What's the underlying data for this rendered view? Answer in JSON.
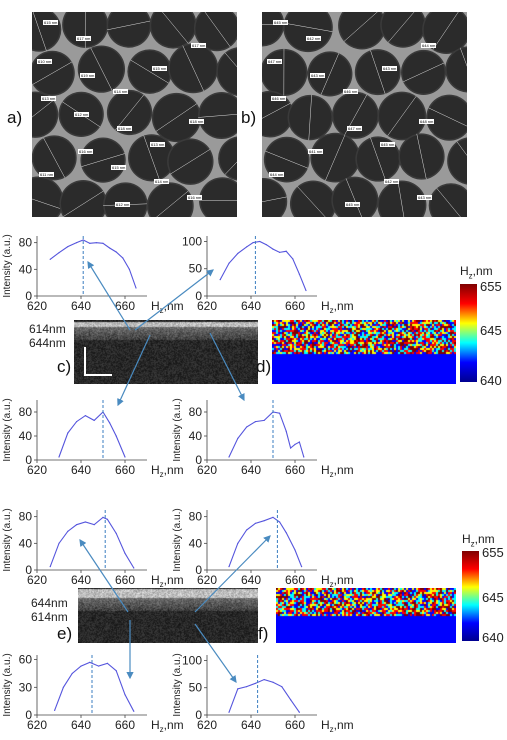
{
  "micrographs": {
    "a": {
      "label": "a)",
      "particle_labels": [
        "615 nm",
        "619 nm",
        "618 nm",
        "614 nm",
        "617 nm",
        "613 nm",
        "616 nm",
        "612 nm",
        "615 nm",
        "618 nm",
        "611 nm",
        "617 nm",
        "614 nm",
        "613 nm",
        "616 nm",
        "610 nm",
        "612 nm",
        "615 nm"
      ]
    },
    "b": {
      "label": "b)",
      "particle_labels": [
        "645 nm",
        "643 nm",
        "647 nm",
        "642 nm",
        "644 nm",
        "646 nm",
        "641 nm",
        "645 nm",
        "643 nm",
        "648 nm",
        "644 nm",
        "642 nm",
        "646 nm",
        "645 nm",
        "643 nm",
        "647 nm"
      ]
    }
  },
  "panel_labels": {
    "c": "c)",
    "d": "d)",
    "e": "e)",
    "f": "f)"
  },
  "layer_labels": {
    "c_top": "614nm",
    "c_bottom": "644nm",
    "e_top": "644nm",
    "e_bottom": "614nm"
  },
  "colorbars": [
    {
      "title": "H",
      "title_sub": "z",
      "title_suffix": ",nm",
      "ticks": [
        "655",
        "645",
        "640"
      ],
      "colors": [
        "#7f0000",
        "#ff0000",
        "#ffff00",
        "#00ffff",
        "#0000ff",
        "#00008f"
      ]
    },
    {
      "title": "H",
      "title_sub": "z",
      "title_suffix": ",nm",
      "ticks": [
        "655",
        "645",
        "640"
      ],
      "colors": [
        "#7f0000",
        "#ff0000",
        "#ffff00",
        "#00ffff",
        "#0000ff",
        "#00008f"
      ]
    }
  ],
  "chart_data": [
    {
      "type": "line",
      "ylabel": "Intensity (a.u.)",
      "xlabel": "H",
      "xlabel_sub": "z",
      "xlabel_suffix": ",nm",
      "xlim": [
        620,
        670
      ],
      "ylim": [
        0,
        90
      ],
      "xticks": [
        "620",
        "640",
        "660"
      ],
      "yticks": [
        "0",
        "40",
        "80"
      ],
      "x": [
        626,
        630,
        634,
        638,
        641,
        644,
        647,
        650,
        653,
        656,
        659,
        662,
        665
      ],
      "series": [
        {
          "values": [
            55,
            65,
            74,
            80,
            84,
            79,
            80,
            79,
            72,
            66,
            57,
            40,
            12
          ]
        }
      ],
      "marker_x": 641
    },
    {
      "type": "line",
      "ylabel": "",
      "xlabel": "H",
      "xlabel_sub": "z",
      "xlabel_suffix": ",nm",
      "xlim": [
        620,
        670
      ],
      "ylim": [
        0,
        110
      ],
      "xticks": [
        "620",
        "640",
        "660"
      ],
      "yticks": [
        "0",
        "50",
        "100"
      ],
      "x": [
        626,
        630,
        634,
        638,
        641,
        644,
        647,
        650,
        653,
        656,
        659,
        662,
        665
      ],
      "series": [
        {
          "values": [
            30,
            60,
            78,
            90,
            98,
            100,
            94,
            86,
            80,
            82,
            68,
            40,
            10
          ]
        }
      ],
      "marker_x": 642
    },
    {
      "type": "line",
      "ylabel": "Intensity (a.u.)",
      "xlabel": "H",
      "xlabel_sub": "z",
      "xlabel_suffix": ",nm",
      "xlim": [
        620,
        670
      ],
      "ylim": [
        0,
        100
      ],
      "xticks": [
        "620",
        "640",
        "660"
      ],
      "yticks": [
        "0",
        "40",
        "80"
      ],
      "x": [
        630,
        634,
        638,
        642,
        646,
        650,
        653,
        656,
        660
      ],
      "series": [
        {
          "values": [
            5,
            45,
            64,
            74,
            66,
            80,
            62,
            40,
            5
          ]
        }
      ],
      "marker_x": 650
    },
    {
      "type": "line",
      "ylabel": "Intensity (a.u.)",
      "xlabel": "H",
      "xlabel_sub": "z",
      "xlabel_suffix": ",nm",
      "xlim": [
        620,
        670
      ],
      "ylim": [
        0,
        100
      ],
      "xticks": [
        "620",
        "640",
        "660"
      ],
      "yticks": [
        "0",
        "40",
        "80"
      ],
      "x": [
        630,
        634,
        638,
        642,
        646,
        650,
        653,
        656,
        658,
        660,
        662,
        664
      ],
      "series": [
        {
          "values": [
            5,
            36,
            55,
            64,
            66,
            80,
            78,
            48,
            20,
            26,
            30,
            5
          ]
        }
      ],
      "marker_x": 650
    },
    {
      "type": "line",
      "ylabel": "Intensity (a.u.)",
      "xlabel": "H",
      "xlabel_sub": "z",
      "xlabel_suffix": ",nm",
      "xlim": [
        620,
        670
      ],
      "ylim": [
        0,
        90
      ],
      "xticks": [
        "620",
        "640",
        "660"
      ],
      "yticks": [
        "0",
        "40",
        "80"
      ],
      "x": [
        626,
        630,
        634,
        638,
        642,
        646,
        650,
        652,
        656,
        660,
        664
      ],
      "series": [
        {
          "values": [
            5,
            40,
            58,
            68,
            72,
            68,
            79,
            76,
            55,
            25,
            3
          ]
        }
      ],
      "marker_x": 651
    },
    {
      "type": "line",
      "ylabel": "Intensity (a.u.)",
      "xlabel": "H",
      "xlabel_sub": "z",
      "xlabel_suffix": ",nm",
      "xlim": [
        620,
        670
      ],
      "ylim": [
        0,
        90
      ],
      "xticks": [
        "620",
        "640",
        "660"
      ],
      "yticks": [
        "0",
        "40",
        "80"
      ],
      "x": [
        630,
        634,
        638,
        642,
        646,
        650,
        653,
        656,
        660,
        663
      ],
      "series": [
        {
          "values": [
            5,
            40,
            60,
            70,
            74,
            79,
            72,
            56,
            30,
            5
          ]
        }
      ],
      "marker_x": 652
    },
    {
      "type": "line",
      "ylabel": "Intensity (a.u.)",
      "xlabel": "H",
      "xlabel_sub": "z",
      "xlabel_suffix": ",nm",
      "xlim": [
        620,
        670
      ],
      "ylim": [
        0,
        65
      ],
      "xticks": [
        "620",
        "640",
        "660"
      ],
      "yticks": [
        "0",
        "30",
        "60"
      ],
      "x": [
        628,
        632,
        636,
        640,
        644,
        648,
        652,
        656,
        660,
        664
      ],
      "series": [
        {
          "values": [
            5,
            30,
            45,
            53,
            57,
            53,
            56,
            48,
            22,
            4
          ]
        }
      ],
      "marker_x": 645
    },
    {
      "type": "line",
      "ylabel": "Intensity (a.u.)",
      "xlabel": "H",
      "xlabel_sub": "z",
      "xlabel_suffix": ",nm",
      "xlim": [
        620,
        670
      ],
      "ylim": [
        0,
        110
      ],
      "xticks": [
        "620",
        "640",
        "660"
      ],
      "yticks": [
        "0",
        "50",
        "100"
      ],
      "x": [
        630,
        634,
        638,
        642,
        646,
        650,
        654,
        658,
        662
      ],
      "series": [
        {
          "values": [
            5,
            48,
            52,
            58,
            65,
            60,
            52,
            28,
            5
          ]
        }
      ],
      "marker_x": 643
    }
  ]
}
